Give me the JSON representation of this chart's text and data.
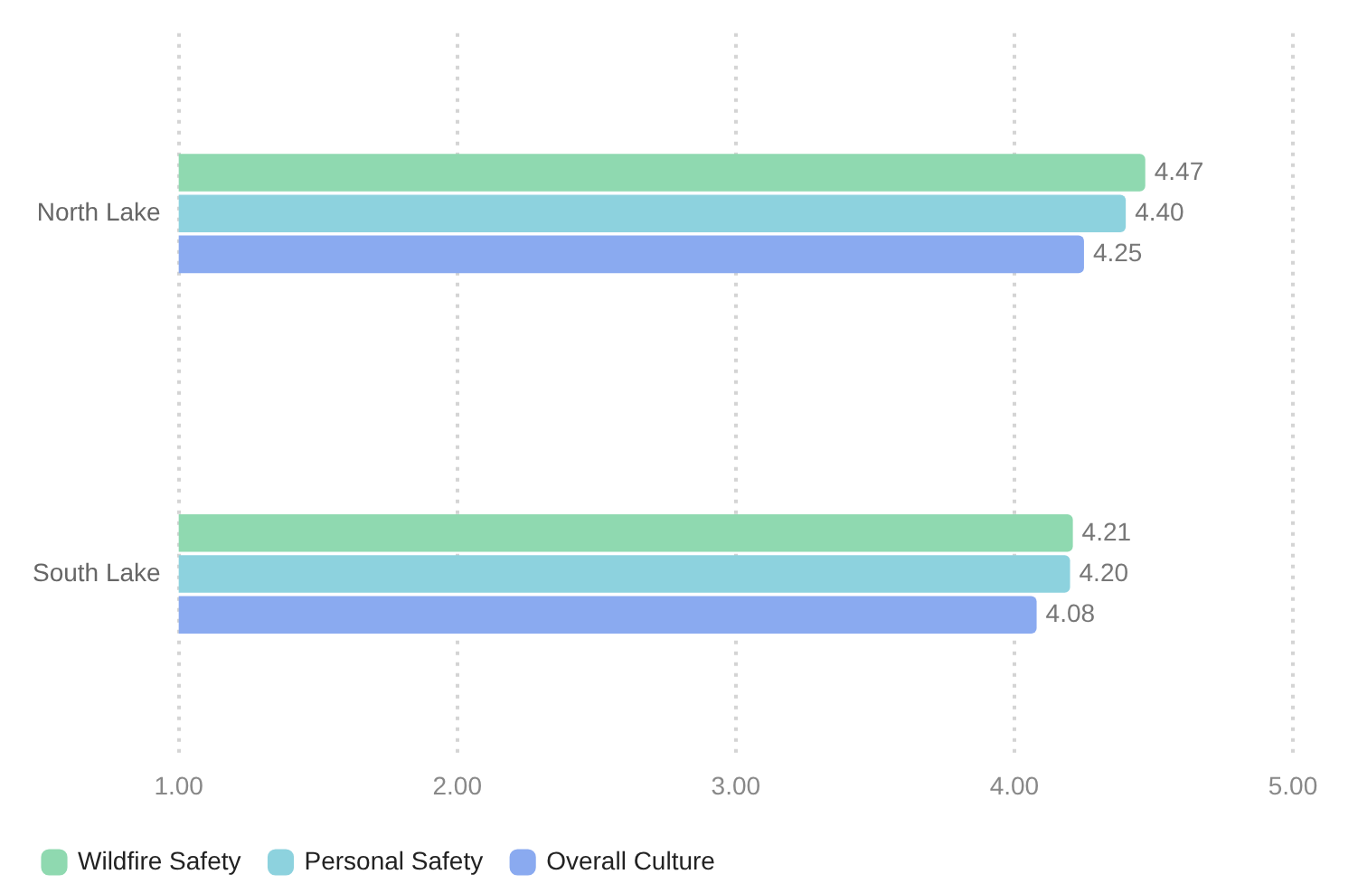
{
  "chart_data": {
    "type": "bar",
    "orientation": "horizontal",
    "categories": [
      "North Lake",
      "South Lake"
    ],
    "series": [
      {
        "name": "Wildfire Safety",
        "color": "#8fd9b0",
        "values": [
          4.47,
          4.21
        ],
        "value_labels": [
          "4.47",
          "4.21"
        ]
      },
      {
        "name": "Personal Safety",
        "color": "#8dd2de",
        "values": [
          4.4,
          4.2
        ],
        "value_labels": [
          "4.40",
          "4.20"
        ]
      },
      {
        "name": "Overall Culture",
        "color": "#8aaaf0",
        "values": [
          4.25,
          4.08
        ],
        "value_labels": [
          "4.25",
          "4.08"
        ]
      }
    ],
    "xlim": [
      1,
      5
    ],
    "xticks": [
      {
        "value": 1,
        "label": "1.00"
      },
      {
        "value": 2,
        "label": "2.00"
      },
      {
        "value": 3,
        "label": "3.00"
      },
      {
        "value": 4,
        "label": "4.00"
      },
      {
        "value": 5,
        "label": "5.00"
      }
    ],
    "grid": "x",
    "legend": "bottom left"
  }
}
